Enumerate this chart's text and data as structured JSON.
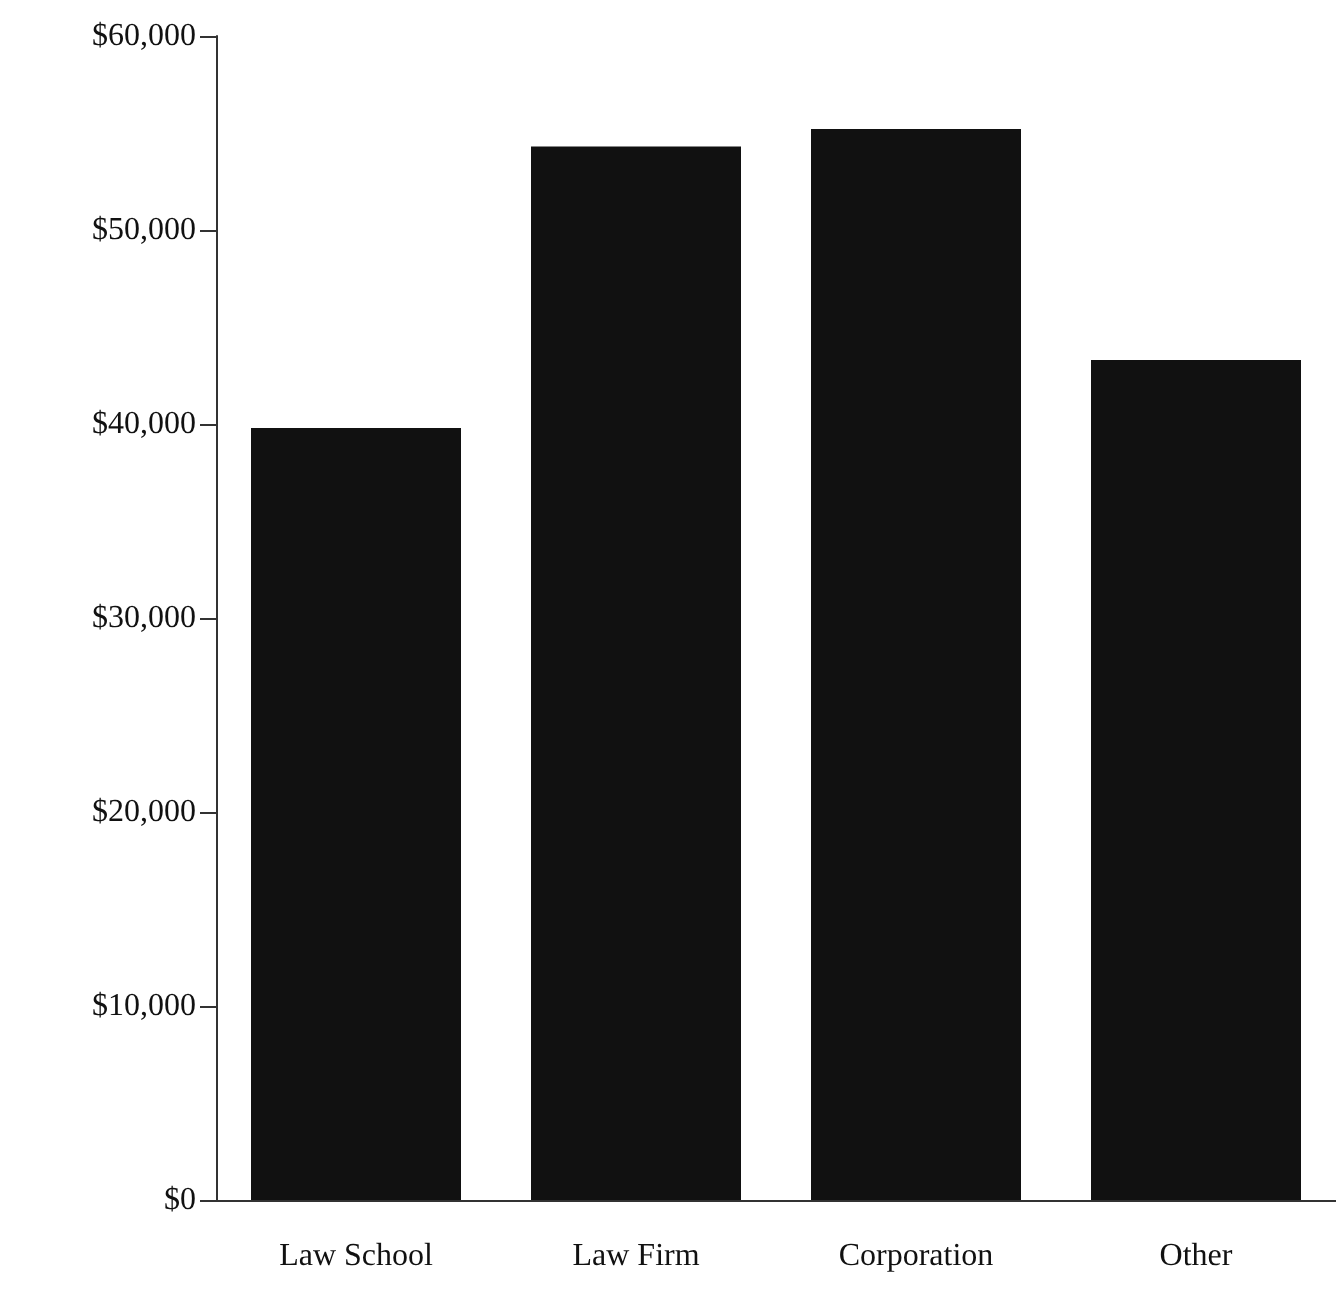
{
  "chart_data": {
    "type": "bar",
    "categories": [
      "Law School",
      "Law Firm",
      "Corporation",
      "Other"
    ],
    "values": [
      39800,
      54300,
      55200,
      43300
    ],
    "color": "#111111",
    "ylim": [
      0,
      60000
    ],
    "yticks": [
      {
        "value": 0,
        "label": "$0"
      },
      {
        "value": 10000,
        "label": "$10,000"
      },
      {
        "value": 20000,
        "label": "$20,000"
      },
      {
        "value": 30000,
        "label": "$30,000"
      },
      {
        "value": 40000,
        "label": "$40,000"
      },
      {
        "value": 50000,
        "label": "$50,000"
      },
      {
        "value": 60000,
        "label": "$60,000"
      }
    ],
    "grid": false
  }
}
